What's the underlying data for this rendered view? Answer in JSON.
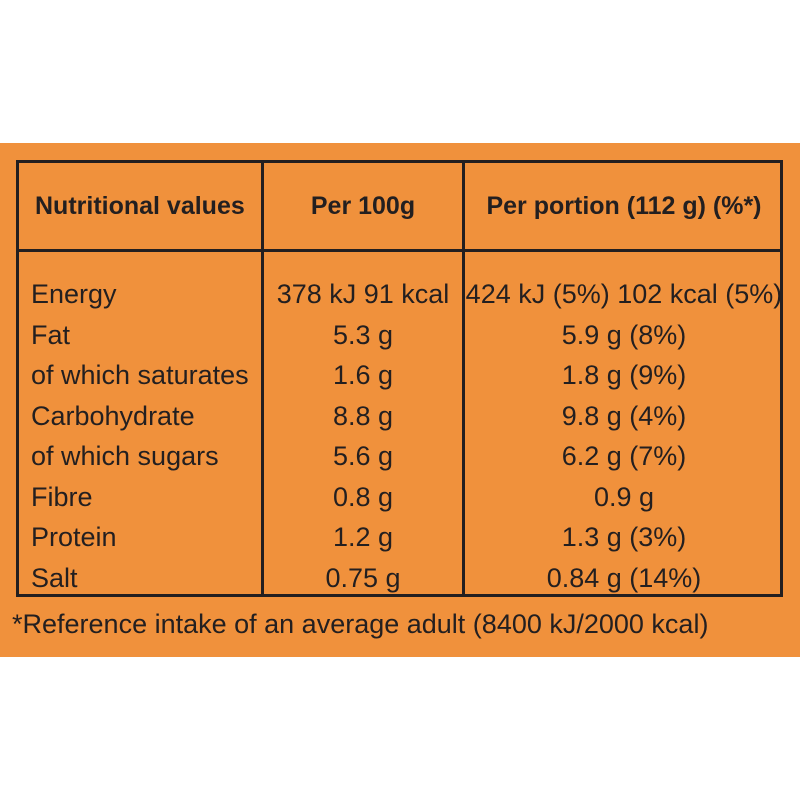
{
  "table": {
    "headers": {
      "nutrient": "Nutritional values",
      "per_100g": "Per 100g",
      "per_portion": "Per portion (112 g) (%*)"
    },
    "rows": [
      {
        "nutrient": "Energy",
        "per_100g": "378 kJ 91 kcal",
        "per_portion": "424 kJ (5%) 102 kcal (5%)"
      },
      {
        "nutrient": "Fat",
        "per_100g": "5.3 g",
        "per_portion": "5.9 g (8%)"
      },
      {
        "nutrient": "of which saturates",
        "per_100g": "1.6 g",
        "per_portion": "1.8 g (9%)"
      },
      {
        "nutrient": "Carbohydrate",
        "per_100g": "8.8 g",
        "per_portion": "9.8 g (4%)"
      },
      {
        "nutrient": "of which sugars",
        "per_100g": "5.6 g",
        "per_portion": "6.2 g (7%)"
      },
      {
        "nutrient": "Fibre",
        "per_100g": "0.8 g",
        "per_portion": "0.9 g"
      },
      {
        "nutrient": "Protein",
        "per_100g": "1.2 g",
        "per_portion": "1.3 g (3%)"
      },
      {
        "nutrient": "Salt",
        "per_100g": "0.75 g",
        "per_portion": "0.84 g (14%)"
      }
    ]
  },
  "footnote": "*Reference intake of an average adult (8400 kJ/2000 kcal)",
  "colors": {
    "panel_background": "#f0913c",
    "ink": "#231f20",
    "page_background": "#ffffff"
  }
}
